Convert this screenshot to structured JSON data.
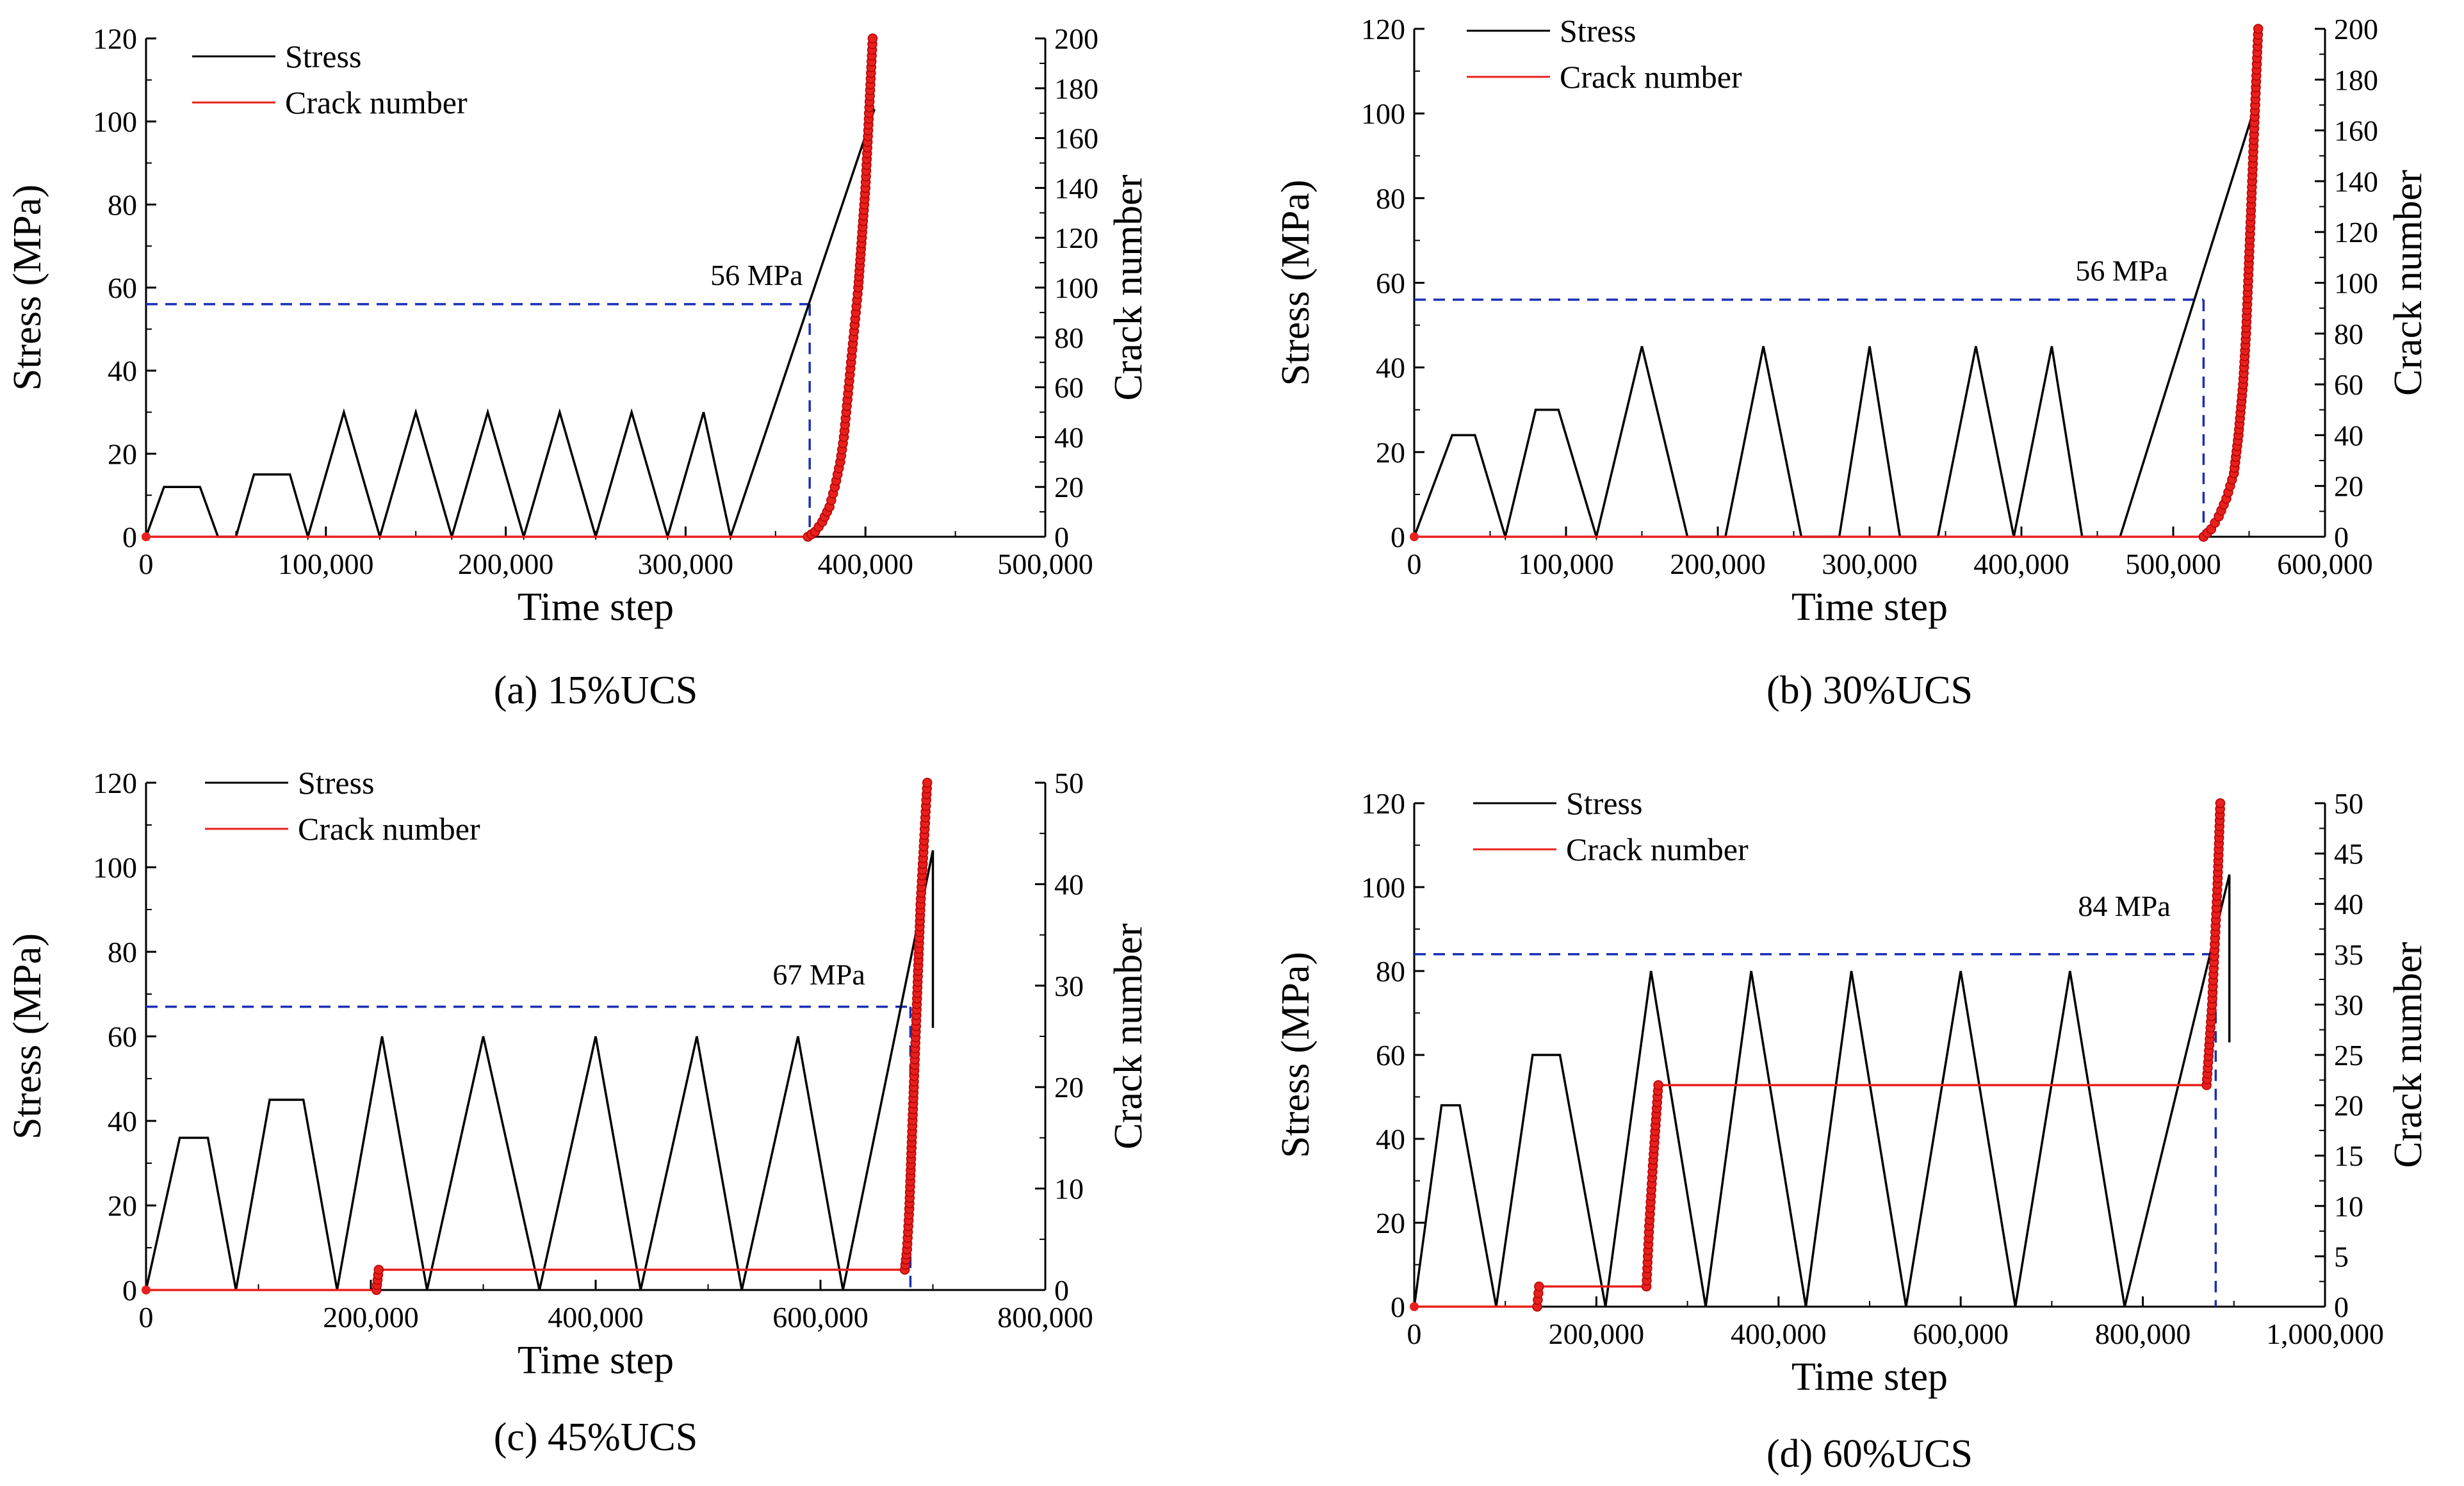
{
  "figure": {
    "legend": {
      "stress": "Stress",
      "crack": "Crack number"
    }
  },
  "chart_data": [
    {
      "id": "a",
      "type": "line",
      "caption": "(a) 15%UCS",
      "xlabel": "Time step",
      "ylabel": "Stress (MPa)",
      "y2label": "Crack number",
      "xlim": [
        0,
        500000
      ],
      "xticks": [
        0,
        100000,
        200000,
        300000,
        400000,
        500000
      ],
      "xtick_labels": [
        "0",
        "100,000",
        "200,000",
        "300,000",
        "400,000",
        "500,000"
      ],
      "ylim": [
        0,
        120
      ],
      "yticks": [
        0,
        20,
        40,
        60,
        80,
        100,
        120
      ],
      "y2lim": [
        0,
        200
      ],
      "y2ticks": [
        0,
        20,
        40,
        60,
        80,
        100,
        120,
        140,
        160,
        180,
        200
      ],
      "threshold": {
        "label": "56 MPa",
        "value": 56,
        "x": 369000,
        "color": "#1a2fb5"
      },
      "stress": {
        "x": [
          0,
          10000,
          30000,
          40000,
          50000,
          60000,
          80000,
          90000,
          110000,
          130000,
          150000,
          170000,
          190000,
          210000,
          230000,
          250000,
          270000,
          290000,
          310000,
          325000,
          405000
        ],
        "y": [
          0,
          12,
          12,
          0,
          0,
          15,
          15,
          0,
          30,
          0,
          30,
          0,
          30,
          0,
          30,
          0,
          30,
          0,
          30,
          0,
          103
        ]
      },
      "crack": {
        "x": [
          0,
          368000,
          372000,
          376000,
          380000,
          383000,
          386000,
          388000,
          390000,
          392000,
          394000,
          396000,
          398000,
          400000,
          402000,
          404000
        ],
        "y": [
          0,
          0,
          2,
          6,
          12,
          20,
          30,
          40,
          55,
          70,
          85,
          100,
          120,
          140,
          170,
          200
        ]
      }
    },
    {
      "id": "b",
      "type": "line",
      "caption": "(b) 30%UCS",
      "xlabel": "Time step",
      "ylabel": "Stress (MPa)",
      "y2label": "Crack number",
      "xlim": [
        0,
        600000
      ],
      "xticks": [
        0,
        100000,
        200000,
        300000,
        400000,
        500000,
        600000
      ],
      "xtick_labels": [
        "0",
        "100,000",
        "200,000",
        "300,000",
        "400,000",
        "500,000",
        "600,000"
      ],
      "ylim": [
        0,
        120
      ],
      "yticks": [
        0,
        20,
        40,
        60,
        80,
        100,
        120
      ],
      "y2lim": [
        0,
        200
      ],
      "y2ticks": [
        0,
        20,
        40,
        60,
        80,
        100,
        120,
        140,
        160,
        180,
        200
      ],
      "threshold": {
        "label": "56 MPa",
        "value": 56,
        "x": 520000,
        "color": "#1a2fb5"
      },
      "stress": {
        "x": [
          0,
          25000,
          40000,
          60000,
          80000,
          95000,
          120000,
          150000,
          180000,
          205000,
          230000,
          255000,
          280000,
          300000,
          320000,
          345000,
          370000,
          395000,
          420000,
          440000,
          465000,
          555000
        ],
        "y": [
          0,
          24,
          24,
          0,
          30,
          30,
          0,
          45,
          0,
          0,
          45,
          0,
          0,
          45,
          0,
          0,
          45,
          0,
          45,
          0,
          0,
          103
        ]
      },
      "crack": {
        "x": [
          0,
          520000,
          525000,
          530000,
          535000,
          540000,
          543000,
          546000,
          548000,
          550000,
          552000,
          554000,
          556000
        ],
        "y": [
          0,
          0,
          3,
          8,
          15,
          25,
          40,
          60,
          80,
          110,
          140,
          170,
          200
        ]
      }
    },
    {
      "id": "c",
      "type": "line",
      "caption": "(c) 45%UCS",
      "xlabel": "Time step",
      "ylabel": "Stress (MPa)",
      "y2label": "Crack number",
      "xlim": [
        0,
        800000
      ],
      "xticks": [
        0,
        200000,
        400000,
        600000,
        800000
      ],
      "xtick_labels": [
        "0",
        "200,000",
        "400,000",
        "600,000",
        "800,000"
      ],
      "ylim": [
        0,
        120
      ],
      "yticks": [
        0,
        20,
        40,
        60,
        80,
        100,
        120
      ],
      "y2lim": [
        0,
        50
      ],
      "y2ticks": [
        0,
        10,
        20,
        30,
        40,
        50
      ],
      "threshold": {
        "label": "67 MPa",
        "value": 67,
        "x": 680000,
        "color": "#1a2fb5"
      },
      "stress": {
        "x": [
          0,
          30000,
          55000,
          80000,
          110000,
          140000,
          170000,
          210000,
          250000,
          300000,
          350000,
          400000,
          440000,
          490000,
          530000,
          580000,
          620000,
          700000,
          700000
        ],
        "y": [
          0,
          36,
          36,
          0,
          45,
          45,
          0,
          60,
          0,
          60,
          0,
          60,
          0,
          60,
          0,
          60,
          0,
          104,
          62
        ]
      },
      "crack": {
        "x": [
          0,
          205000,
          207000,
          207000,
          675000,
          677000,
          679000,
          681000,
          683000,
          685000,
          687000,
          689000,
          691000,
          693000,
          695000
        ],
        "y": [
          0,
          0,
          2,
          2,
          2,
          4,
          8,
          14,
          20,
          26,
          32,
          38,
          42,
          46,
          50
        ]
      }
    },
    {
      "id": "d",
      "type": "line",
      "caption": "(d) 60%UCS",
      "xlabel": "Time step",
      "ylabel": "Stress (MPa)",
      "y2label": "Crack number",
      "xlim": [
        0,
        1000000
      ],
      "xticks": [
        0,
        200000,
        400000,
        600000,
        800000,
        1000000
      ],
      "xtick_labels": [
        "0",
        "200,000",
        "400,000",
        "600,000",
        "800,000",
        "1,000,000"
      ],
      "ylim": [
        0,
        120
      ],
      "yticks": [
        0,
        20,
        40,
        60,
        80,
        100,
        120
      ],
      "y2lim": [
        0,
        50
      ],
      "y2ticks": [
        0,
        5,
        10,
        15,
        20,
        25,
        30,
        35,
        40,
        45,
        50
      ],
      "threshold": {
        "label": "84 MPa",
        "value": 84,
        "x": 880000,
        "color": "#1a2fb5"
      },
      "stress": {
        "x": [
          0,
          30000,
          50000,
          90000,
          130000,
          160000,
          210000,
          260000,
          320000,
          370000,
          430000,
          480000,
          540000,
          600000,
          660000,
          720000,
          780000,
          895000,
          895000
        ],
        "y": [
          0,
          48,
          48,
          0,
          60,
          60,
          0,
          80,
          0,
          80,
          0,
          80,
          0,
          80,
          0,
          80,
          0,
          103,
          63
        ]
      },
      "crack": {
        "x": [
          0,
          135000,
          137000,
          137000,
          255000,
          258000,
          262000,
          265000,
          268000,
          268000,
          870000,
          873000,
          876000,
          879000,
          882000,
          885000
        ],
        "y": [
          0,
          0,
          2,
          2,
          2,
          8,
          14,
          18,
          22,
          22,
          22,
          26,
          30,
          36,
          42,
          50
        ]
      }
    }
  ]
}
